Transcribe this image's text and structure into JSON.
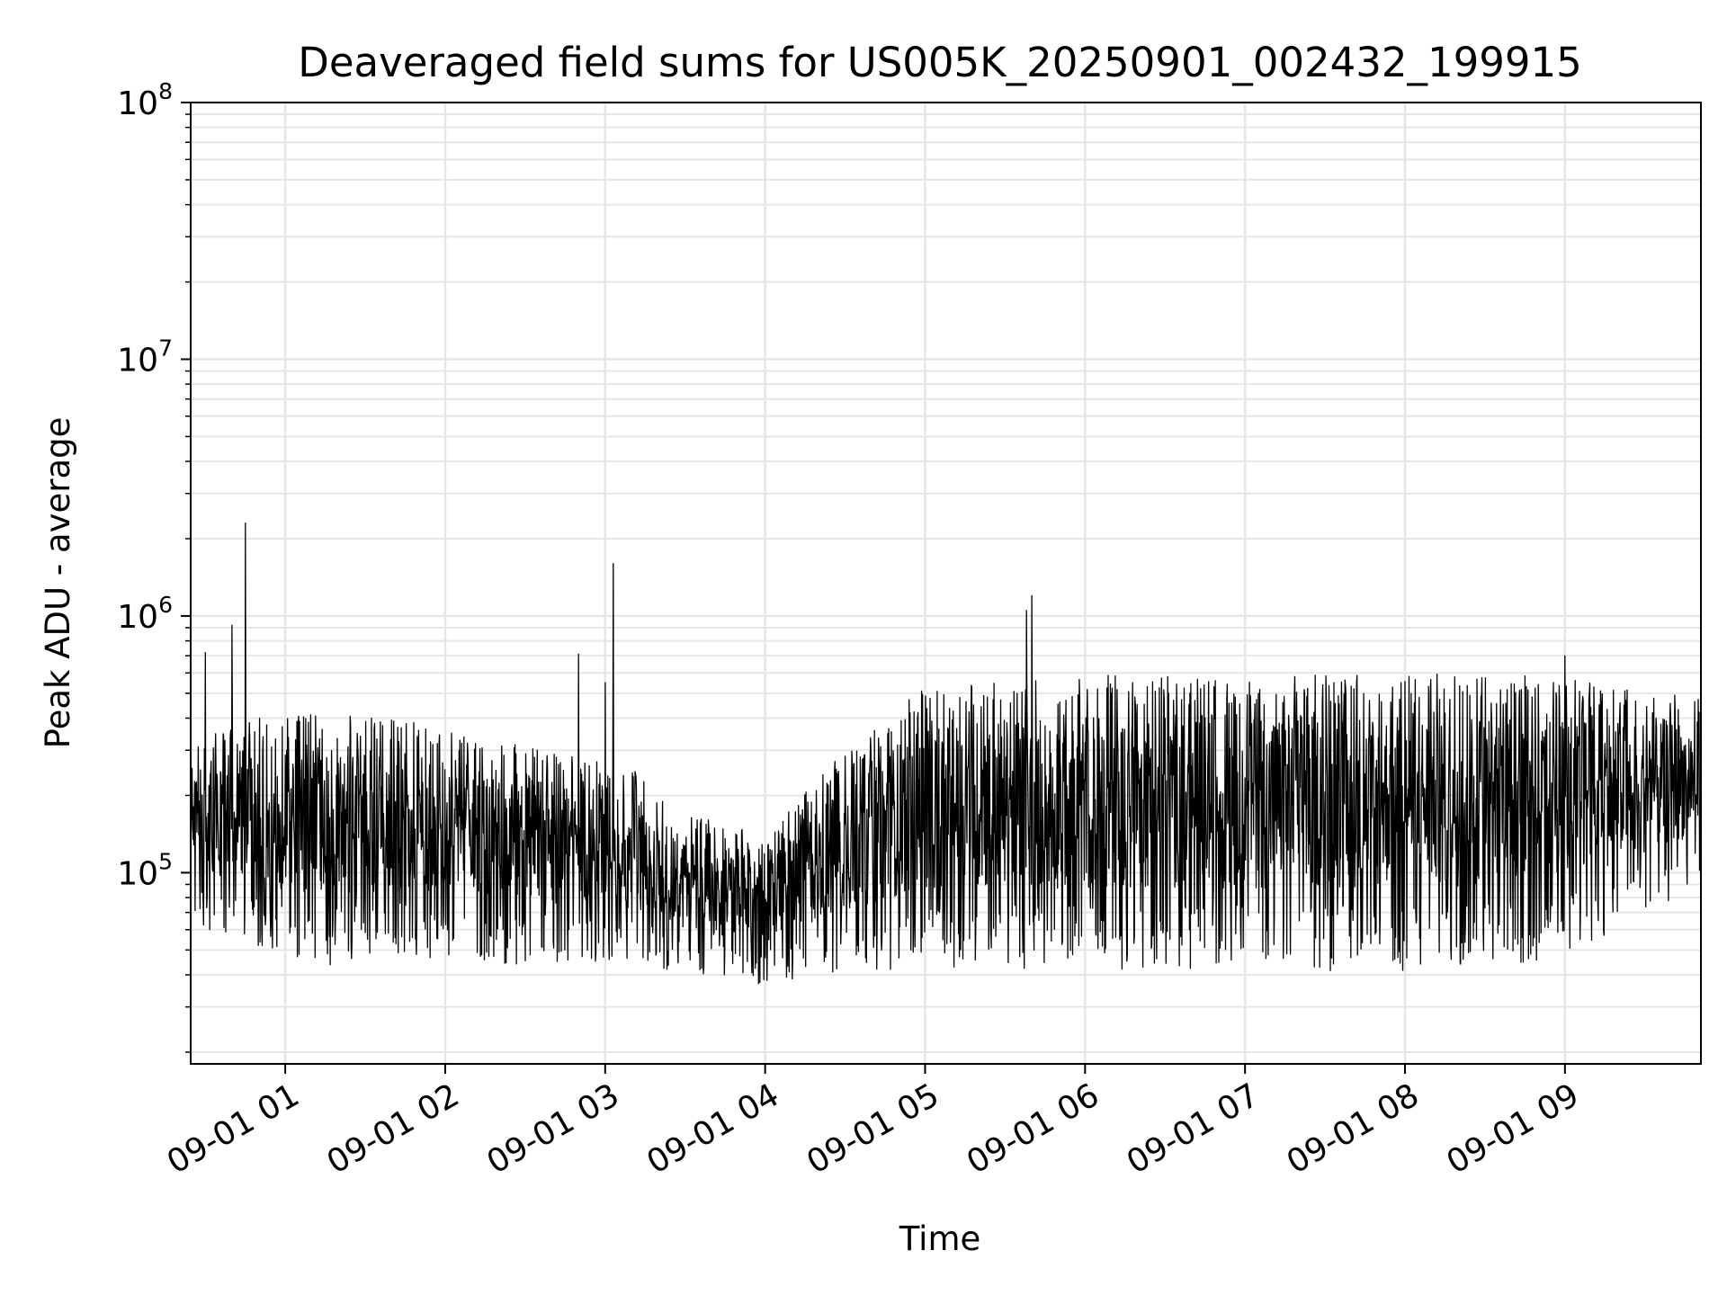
{
  "chart_data": {
    "type": "line",
    "title": "Deaveraged field sums for US005K_20250901_002432_199915",
    "xlabel": "Time",
    "ylabel": "Peak ADU - average",
    "yscale": "log",
    "ylim": [
      18000,
      100000000
    ],
    "xlim": [
      "2025-09-01T00:24:32",
      "2025-09-01T09:51:00"
    ],
    "grid": true,
    "line_color": "#000000",
    "grid_color": "#e6e6e6",
    "x_ticks": [
      {
        "value": "2025-09-01T01:00:00",
        "label": "09-01 01"
      },
      {
        "value": "2025-09-01T02:00:00",
        "label": "09-01 02"
      },
      {
        "value": "2025-09-01T03:00:00",
        "label": "09-01 03"
      },
      {
        "value": "2025-09-01T04:00:00",
        "label": "09-01 04"
      },
      {
        "value": "2025-09-01T05:00:00",
        "label": "09-01 05"
      },
      {
        "value": "2025-09-01T06:00:00",
        "label": "09-01 06"
      },
      {
        "value": "2025-09-01T07:00:00",
        "label": "09-01 07"
      },
      {
        "value": "2025-09-01T08:00:00",
        "label": "09-01 08"
      },
      {
        "value": "2025-09-01T09:00:00",
        "label": "09-01 09"
      }
    ],
    "y_ticks": [
      {
        "value": 100000,
        "base": "10",
        "exp": "5"
      },
      {
        "value": 1000000,
        "base": "10",
        "exp": "6"
      },
      {
        "value": 10000000,
        "base": "10",
        "exp": "7"
      },
      {
        "value": 100000000,
        "base": "10",
        "exp": "8"
      }
    ],
    "series": [
      {
        "band_envelope": [
          {
            "x": "2025-09-01T00:24:32",
            "low": 60000,
            "high": 320000
          },
          {
            "x": "2025-09-01T00:45:00",
            "low": 48000,
            "high": 400000
          },
          {
            "x": "2025-09-01T01:15:00",
            "low": 40000,
            "high": 420000
          },
          {
            "x": "2025-09-01T01:45:00",
            "low": 45000,
            "high": 400000
          },
          {
            "x": "2025-09-01T02:15:00",
            "low": 40000,
            "high": 330000
          },
          {
            "x": "2025-09-01T02:45:00",
            "low": 42000,
            "high": 300000
          },
          {
            "x": "2025-09-01T03:10:00",
            "low": 42000,
            "high": 260000
          },
          {
            "x": "2025-09-01T03:30:00",
            "low": 38000,
            "high": 170000
          },
          {
            "x": "2025-09-01T04:00:00",
            "low": 35000,
            "high": 140000
          },
          {
            "x": "2025-09-01T04:30:00",
            "low": 38000,
            "high": 300000
          },
          {
            "x": "2025-09-01T05:00:00",
            "low": 40000,
            "high": 530000
          },
          {
            "x": "2025-09-01T05:30:00",
            "low": 38000,
            "high": 560000
          },
          {
            "x": "2025-09-01T06:00:00",
            "low": 38000,
            "high": 590000
          },
          {
            "x": "2025-09-01T07:00:00",
            "low": 38000,
            "high": 590000
          },
          {
            "x": "2025-09-01T08:00:00",
            "low": 38000,
            "high": 600000
          },
          {
            "x": "2025-09-01T09:00:00",
            "low": 42000,
            "high": 580000
          },
          {
            "x": "2025-09-01T09:51:00",
            "low": 85000,
            "high": 480000
          }
        ],
        "spikes": [
          {
            "x": "2025-09-01T00:30:00",
            "value": 720000
          },
          {
            "x": "2025-09-01T00:40:00",
            "value": 920000
          },
          {
            "x": "2025-09-01T00:45:00",
            "value": 2300000
          },
          {
            "x": "2025-09-01T02:50:00",
            "value": 710000
          },
          {
            "x": "2025-09-01T03:00:00",
            "value": 550000
          },
          {
            "x": "2025-09-01T03:03:00",
            "value": 1600000
          },
          {
            "x": "2025-09-01T05:38:00",
            "value": 1050000
          },
          {
            "x": "2025-09-01T05:40:00",
            "value": 1200000
          },
          {
            "x": "2025-09-01T09:00:00",
            "value": 700000
          }
        ]
      }
    ]
  }
}
